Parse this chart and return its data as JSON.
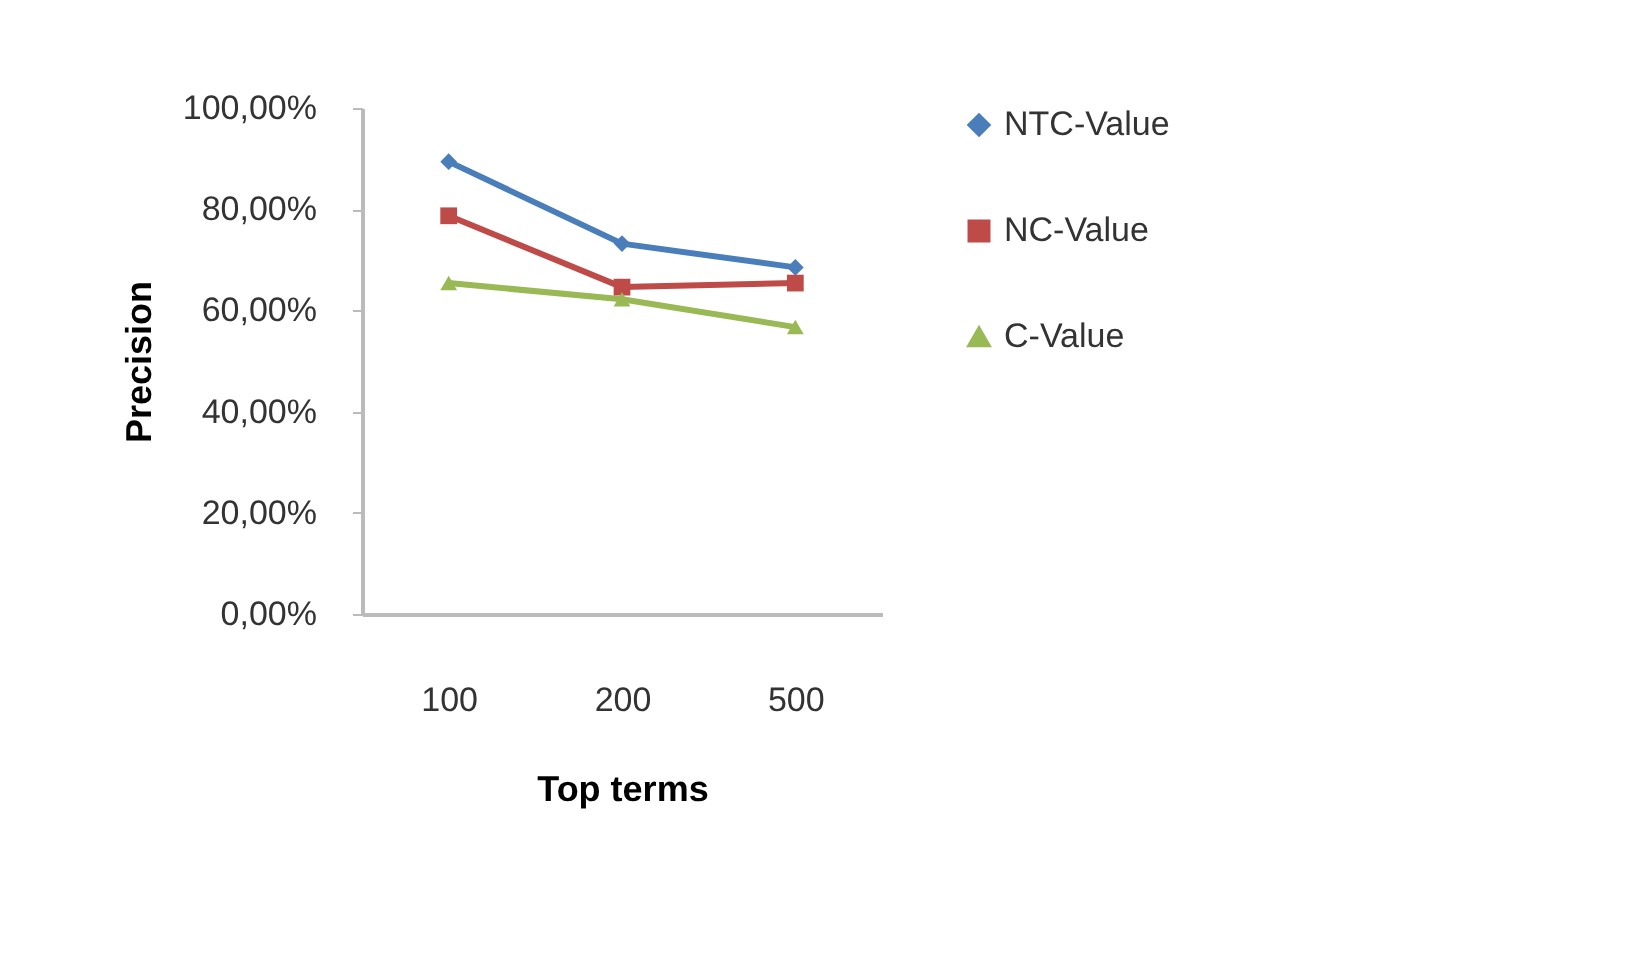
{
  "chart_data": {
    "type": "line",
    "xlabel": "Top terms",
    "ylabel": "Precision",
    "categories": [
      "100",
      "200",
      "500"
    ],
    "series": [
      {
        "name": "NTC-Value",
        "color": "#4a7ebb",
        "marker": "diamond",
        "values": [
          89.4,
          73.2,
          68.5
        ]
      },
      {
        "name": "NC-Value",
        "color": "#be4b48",
        "marker": "square",
        "values": [
          78.7,
          64.6,
          65.4
        ]
      },
      {
        "name": "C-Value",
        "color": "#98b954",
        "marker": "triangle",
        "values": [
          65.4,
          62.2,
          56.7
        ]
      }
    ],
    "ylim": [
      0,
      100
    ],
    "yticks": [
      {
        "value": 0,
        "label": "0,00%"
      },
      {
        "value": 20,
        "label": "20,00%"
      },
      {
        "value": 40,
        "label": "40,00%"
      },
      {
        "value": 60,
        "label": "60,00%"
      },
      {
        "value": 80,
        "label": "80,00%"
      },
      {
        "value": 100,
        "label": "100,00%"
      }
    ],
    "grid": false,
    "legend": "right",
    "line_style": "solid"
  }
}
